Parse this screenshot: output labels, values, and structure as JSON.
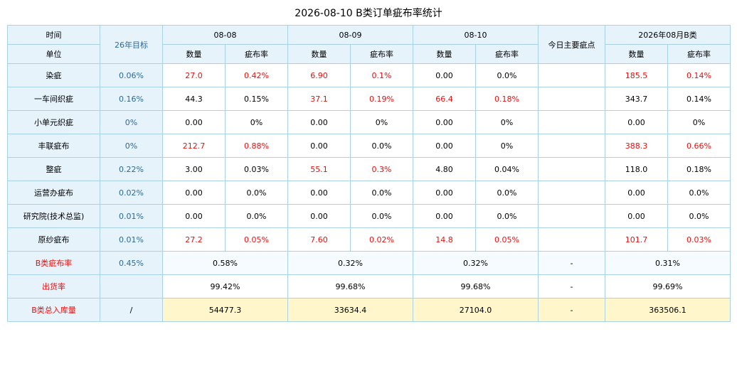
{
  "title": "2026-08-10 B类订单疵布率统计",
  "header": {
    "time": "时间",
    "unit": "单位",
    "target": "26年目标",
    "dates": [
      "08-08",
      "08-09",
      "08-10"
    ],
    "main_defect": "今日主要疵点",
    "month": "2026年08月B类",
    "qty": "数量",
    "rate": "疵布率"
  },
  "rows": [
    {
      "name": "染疵",
      "target": "0.06%",
      "cells": [
        [
          "27.0",
          "0.42%",
          true
        ],
        [
          "6.90",
          "0.1%",
          true
        ],
        [
          "0.00",
          "0.0%",
          false
        ]
      ],
      "main": "",
      "month": [
        "185.5",
        "0.14%",
        true
      ]
    },
    {
      "name": "一车间织疵",
      "target": "0.16%",
      "cells": [
        [
          "44.3",
          "0.15%",
          false
        ],
        [
          "37.1",
          "0.19%",
          true
        ],
        [
          "66.4",
          "0.18%",
          true
        ]
      ],
      "main": "",
      "month": [
        "343.7",
        "0.14%",
        false
      ]
    },
    {
      "name": "小单元织疵",
      "target": "0%",
      "cells": [
        [
          "0.00",
          "0%",
          false
        ],
        [
          "0.00",
          "0%",
          false
        ],
        [
          "0.00",
          "0%",
          false
        ]
      ],
      "main": "",
      "month": [
        "0.00",
        "0%",
        false
      ]
    },
    {
      "name": "丰联疵布",
      "target": "0%",
      "cells": [
        [
          "212.7",
          "0.88%",
          true
        ],
        [
          "0.00",
          "0.0%",
          false
        ],
        [
          "0.00",
          "0%",
          false
        ]
      ],
      "main": "",
      "month": [
        "388.3",
        "0.66%",
        true
      ]
    },
    {
      "name": "整疵",
      "target": "0.22%",
      "cells": [
        [
          "3.00",
          "0.03%",
          false
        ],
        [
          "55.1",
          "0.3%",
          true
        ],
        [
          "4.80",
          "0.04%",
          false
        ]
      ],
      "main": "",
      "month": [
        "118.0",
        "0.18%",
        false
      ]
    },
    {
      "name": "运营办疵布",
      "target": "0.02%",
      "cells": [
        [
          "0.00",
          "0.0%",
          false
        ],
        [
          "0.00",
          "0.0%",
          false
        ],
        [
          "0.00",
          "0.0%",
          false
        ]
      ],
      "main": "",
      "month": [
        "0.00",
        "0.0%",
        false
      ]
    },
    {
      "name": "研究院(技术总监)",
      "target": "0.01%",
      "cells": [
        [
          "0.00",
          "0.0%",
          false
        ],
        [
          "0.00",
          "0.0%",
          false
        ],
        [
          "0.00",
          "0.0%",
          false
        ]
      ],
      "main": "",
      "month": [
        "0.00",
        "0.0%",
        false
      ]
    },
    {
      "name": "原纱疵布",
      "target": "0.01%",
      "cells": [
        [
          "27.2",
          "0.05%",
          true
        ],
        [
          "7.60",
          "0.02%",
          true
        ],
        [
          "14.8",
          "0.05%",
          true
        ]
      ],
      "main": "",
      "month": [
        "101.7",
        "0.03%",
        true
      ]
    }
  ],
  "summary": {
    "b_rate": {
      "name": "B类疵布率",
      "target": "0.45%",
      "vals": [
        "0.58%",
        "0.32%",
        "0.32%"
      ],
      "main": "-",
      "month": "0.31%"
    },
    "ship_rate": {
      "name": "出货率",
      "target": "",
      "vals": [
        "99.42%",
        "99.68%",
        "99.68%"
      ],
      "main": "-",
      "month": "99.69%"
    },
    "total": {
      "name": "B类总入库量",
      "target": "/",
      "vals": [
        "54477.3",
        "33634.4",
        "27104.0"
      ],
      "main": "-",
      "month": "363506.1"
    }
  },
  "colors": {
    "red": "#e8100f",
    "header_bg": "#e6f3fb",
    "border": "#a9d2e6",
    "yellow": "#fff6cc",
    "target_text": "#2b6a96"
  }
}
